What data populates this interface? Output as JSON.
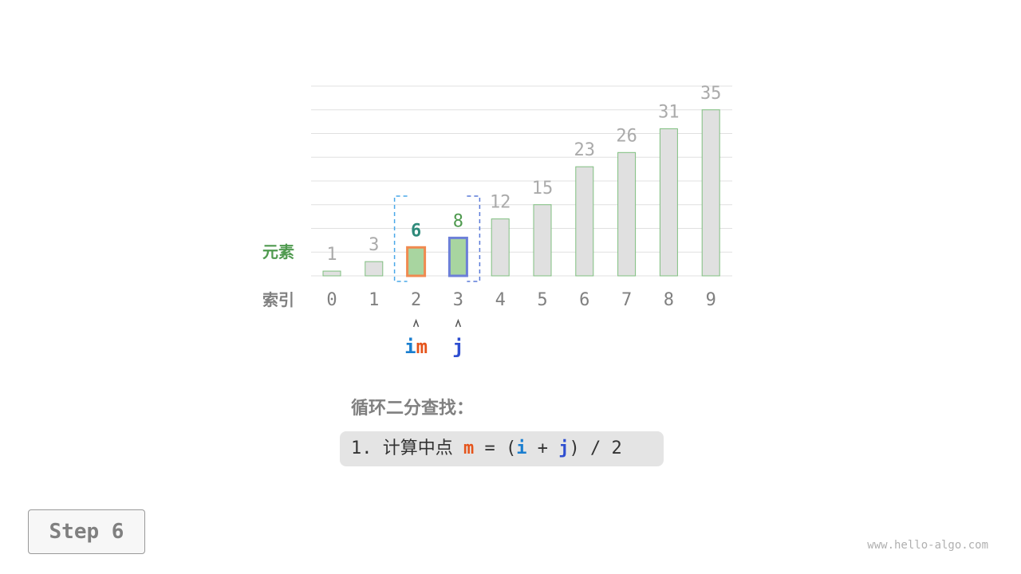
{
  "chart_data": {
    "type": "bar",
    "row_labels": {
      "value": "元素",
      "index": "索引"
    },
    "categories": [
      "0",
      "1",
      "2",
      "3",
      "4",
      "5",
      "6",
      "7",
      "8",
      "9"
    ],
    "values": [
      1,
      3,
      6,
      8,
      12,
      15,
      23,
      26,
      31,
      35
    ],
    "ylim": [
      0,
      40
    ],
    "grid": true,
    "highlight": {
      "i": 2,
      "m": 2,
      "j": 3
    },
    "pointers": [
      {
        "index": 2,
        "labels": [
          "i",
          "m"
        ]
      },
      {
        "index": 3,
        "labels": [
          "j"
        ]
      }
    ],
    "search_range": [
      2,
      3
    ]
  },
  "colors": {
    "bar": "#e0e0e0",
    "bar_border": "#7fbf7f",
    "active_fill": "#a8d5a0",
    "m_border": "#f08a50",
    "j_border": "#6c7fd8",
    "i": "#1a7ecf",
    "m": "#e5541b",
    "j": "#2e4ed0",
    "range_left": "#4aa8e8",
    "range_right": "#5a7ad8"
  },
  "title": "循环二分查找：",
  "formula": {
    "prefix": "1. 计算中点 ",
    "m": "m",
    "eq": " = (",
    "i": "i",
    "plus": " + ",
    "j": "j",
    "suffix": ") / 2"
  },
  "step_label": "Step 6",
  "watermark": "www.hello-algo.com"
}
